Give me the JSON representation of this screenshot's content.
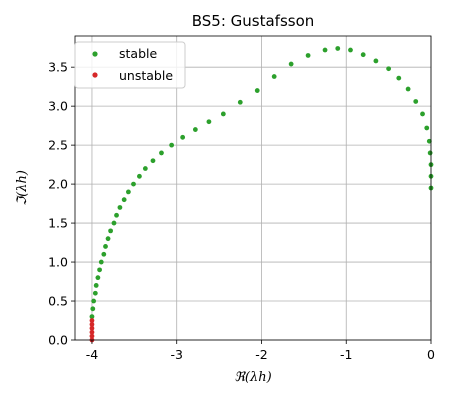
{
  "chart_data": {
    "type": "scatter",
    "title": "BS5: Gustafsson",
    "xlabel": "ℜ(λh)",
    "ylabel": "ℑ(λh)",
    "xlim": [
      -4.2,
      0.0
    ],
    "ylim": [
      0.0,
      3.9
    ],
    "xticks": [
      "-4",
      "-3",
      "-2",
      "-1",
      "0"
    ],
    "xtick_values": [
      -4,
      -3,
      -2,
      -1,
      0
    ],
    "yticks": [
      "0.0",
      "0.5",
      "1.0",
      "1.5",
      "2.0",
      "2.5",
      "3.0",
      "3.5"
    ],
    "ytick_values": [
      0.0,
      0.5,
      1.0,
      1.5,
      2.0,
      2.5,
      3.0,
      3.5
    ],
    "grid": true,
    "legend_position": "top-left",
    "series": [
      {
        "name": "stable",
        "color": "#2ca02c",
        "points": [
          [
            -4.0,
            0.3
          ],
          [
            -3.99,
            0.4
          ],
          [
            -3.98,
            0.5
          ],
          [
            -3.96,
            0.6
          ],
          [
            -3.95,
            0.7
          ],
          [
            -3.93,
            0.8
          ],
          [
            -3.91,
            0.9
          ],
          [
            -3.89,
            1.0
          ],
          [
            -3.86,
            1.1
          ],
          [
            -3.84,
            1.2
          ],
          [
            -3.81,
            1.3
          ],
          [
            -3.78,
            1.4
          ],
          [
            -3.74,
            1.5
          ],
          [
            -3.71,
            1.6
          ],
          [
            -3.67,
            1.7
          ],
          [
            -3.62,
            1.8
          ],
          [
            -3.57,
            1.9
          ],
          [
            -3.51,
            2.0
          ],
          [
            -3.44,
            2.1
          ],
          [
            -3.37,
            2.2
          ],
          [
            -3.28,
            2.3
          ],
          [
            -3.18,
            2.4
          ],
          [
            -3.06,
            2.5
          ],
          [
            -2.93,
            2.6
          ],
          [
            -2.78,
            2.7
          ],
          [
            -2.62,
            2.8
          ],
          [
            -2.45,
            2.9
          ],
          [
            -2.25,
            3.05
          ],
          [
            -2.05,
            3.2
          ],
          [
            -1.85,
            3.38
          ],
          [
            -1.65,
            3.54
          ],
          [
            -1.45,
            3.65
          ],
          [
            -1.25,
            3.72
          ],
          [
            -1.1,
            3.74
          ],
          [
            -0.95,
            3.72
          ],
          [
            -0.8,
            3.66
          ],
          [
            -0.65,
            3.58
          ],
          [
            -0.5,
            3.48
          ],
          [
            -0.38,
            3.36
          ],
          [
            -0.27,
            3.22
          ],
          [
            -0.18,
            3.06
          ],
          [
            -0.1,
            2.9
          ],
          [
            -0.05,
            2.72
          ],
          [
            -0.02,
            2.55
          ],
          [
            -0.01,
            2.4
          ],
          [
            0.0,
            2.25
          ],
          [
            0.0,
            2.1
          ],
          [
            0.0,
            1.95
          ]
        ]
      },
      {
        "name": "unstable",
        "color": "#d62728",
        "points": [
          [
            -4.0,
            0.0
          ],
          [
            -4.0,
            0.05
          ],
          [
            -4.0,
            0.1
          ],
          [
            -4.0,
            0.15
          ],
          [
            -4.0,
            0.2
          ],
          [
            -4.0,
            0.25
          ]
        ]
      }
    ]
  }
}
